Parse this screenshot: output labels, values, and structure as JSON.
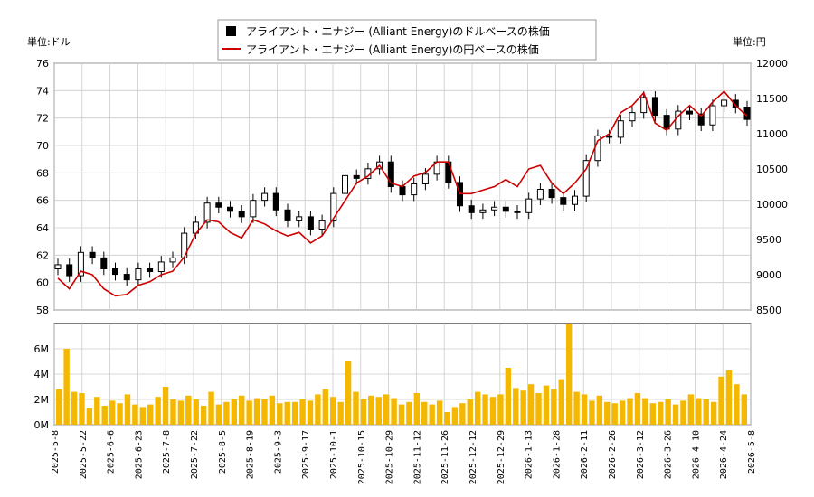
{
  "legend": {
    "usd_label": "アライアント・エナジー (Alliant Energy)のドルベースの株価",
    "jpy_label": "アライアント・エナジー (Alliant Energy)の円ベースの株価"
  },
  "axes": {
    "left_unit": "単位:ドル",
    "right_unit": "単位:円"
  },
  "colors": {
    "usd": "#000000",
    "jpy": "#cc0000",
    "volume": "#f5b800",
    "grid": "#cccccc"
  },
  "chart_data": [
    {
      "type": "candlestick",
      "name": "price",
      "y_left": {
        "min": 58,
        "max": 76,
        "ticks": [
          58,
          60,
          62,
          64,
          66,
          68,
          70,
          72,
          74,
          76
        ],
        "label": "単位:ドル"
      },
      "y_right": {
        "min": 8500,
        "max": 12000,
        "ticks": [
          8500,
          9000,
          9500,
          10000,
          10500,
          11000,
          11500,
          12000
        ],
        "label": "単位:円"
      },
      "x_dates": [
        "2025-5-8",
        "2025-5-22",
        "2025-6-6",
        "2025-6-23",
        "2025-7-8",
        "2025-7-22",
        "2025-8-5",
        "2025-8-19",
        "2025-9-3",
        "2025-9-17",
        "2025-10-1",
        "2025-10-15",
        "2025-10-29",
        "2025-11-12",
        "2025-11-26",
        "2025-12-12",
        "2025-12-29",
        "2026-1-13",
        "2026-1-28",
        "2026-2-11",
        "2026-2-26",
        "2026-3-12",
        "2026-3-26",
        "2026-4-10",
        "2026-4-24",
        "2026-5-8"
      ],
      "usd_close": [
        61.3,
        60.5,
        62.2,
        61.8,
        61.0,
        60.6,
        60.2,
        61.0,
        60.8,
        61.5,
        61.8,
        63.6,
        64.4,
        65.8,
        65.5,
        65.2,
        64.8,
        66.0,
        66.5,
        65.3,
        64.5,
        64.8,
        63.9,
        64.5,
        66.5,
        67.8,
        67.6,
        68.3,
        68.8,
        67.0,
        66.4,
        67.2,
        67.9,
        68.8,
        67.3,
        65.6,
        65.1,
        65.3,
        65.5,
        65.2,
        65.1,
        66.1,
        66.8,
        66.2,
        65.7,
        66.3,
        68.9,
        70.7,
        70.6,
        71.8,
        72.4,
        73.5,
        72.2,
        71.2,
        72.5,
        72.3,
        71.5,
        72.9,
        73.3,
        72.8,
        71.9
      ],
      "jpy_close": [
        8950,
        8800,
        9050,
        9000,
        8800,
        8700,
        8720,
        8850,
        8900,
        9000,
        9050,
        9250,
        9580,
        9780,
        9750,
        9600,
        9520,
        9780,
        9720,
        9620,
        9550,
        9600,
        9450,
        9550,
        9800,
        10050,
        10300,
        10400,
        10550,
        10300,
        10250,
        10400,
        10450,
        10600,
        10600,
        10150,
        10150,
        10200,
        10250,
        10350,
        10250,
        10500,
        10550,
        10300,
        10150,
        10300,
        10500,
        10900,
        11000,
        11300,
        11400,
        11580,
        11150,
        11050,
        11250,
        11400,
        11250,
        11450,
        11600,
        11400,
        11250
      ]
    },
    {
      "type": "bar",
      "name": "volume",
      "y": {
        "min": 0,
        "max": 8000000,
        "ticks": [
          "0M",
          "2M",
          "4M",
          "6M"
        ]
      },
      "values_millions": [
        2.8,
        6.0,
        2.6,
        2.5,
        1.3,
        2.2,
        1.5,
        1.9,
        1.7,
        2.4,
        1.6,
        1.4,
        1.6,
        2.2,
        3.0,
        2.0,
        1.9,
        2.3,
        2.0,
        1.5,
        2.6,
        1.6,
        1.8,
        2.0,
        2.3,
        1.9,
        2.1,
        2.0,
        2.3,
        1.7,
        1.8,
        1.8,
        2.0,
        1.9,
        2.4,
        2.8,
        2.2,
        1.8,
        5.0,
        2.6,
        2.0,
        2.3,
        2.2,
        2.4,
        2.1,
        1.6,
        1.8,
        2.5,
        1.8,
        1.6,
        1.9,
        1.0,
        1.4,
        1.7,
        2.0,
        2.6,
        2.4,
        2.2,
        2.4,
        4.5,
        2.9,
        2.7,
        3.2,
        2.5,
        3.1,
        2.8,
        3.6,
        8.0,
        2.6,
        2.4,
        1.9,
        2.3,
        1.8,
        1.7,
        1.9,
        2.1,
        2.5,
        2.1,
        1.7,
        1.8,
        2.0,
        1.6,
        1.9,
        2.4,
        2.1,
        2.0,
        1.8,
        3.8,
        4.3,
        3.2,
        2.4
      ]
    }
  ]
}
